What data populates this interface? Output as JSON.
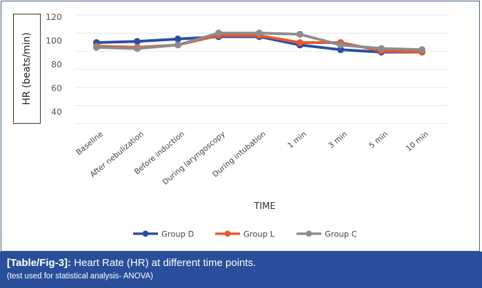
{
  "chart_data": {
    "type": "line",
    "title": "",
    "xlabel": "TIME",
    "ylabel": "HR (beats/min)",
    "yticks": [
      120,
      100,
      80,
      60,
      40
    ],
    "ylim": [
      40,
      120
    ],
    "grid": true,
    "legend_position": "bottom",
    "categories": [
      "Baseline",
      "After nebulization",
      "Before induction",
      "During laryngoscopy",
      "During intubation",
      "1 min",
      "3 min",
      "5 min",
      "10 min"
    ],
    "series": [
      {
        "name": "Group D",
        "color": "#2a4fa0",
        "values": [
          98,
          99,
          101,
          103,
          103,
          96,
          92,
          90,
          90
        ]
      },
      {
        "name": "Group L",
        "color": "#e8582a",
        "values": [
          95,
          94,
          96,
          104,
          104,
          98,
          98,
          91,
          90
        ]
      },
      {
        "name": "Group C",
        "color": "#8c8c8c",
        "values": [
          94,
          93,
          96,
          106,
          106,
          105,
          96,
          93,
          92
        ]
      }
    ]
  },
  "caption": {
    "label": "[Table/Fig-3]:",
    "text": " Heart Rate (HR) at different time points.",
    "note": "(test used for statistical analysis- ANOVA)"
  }
}
